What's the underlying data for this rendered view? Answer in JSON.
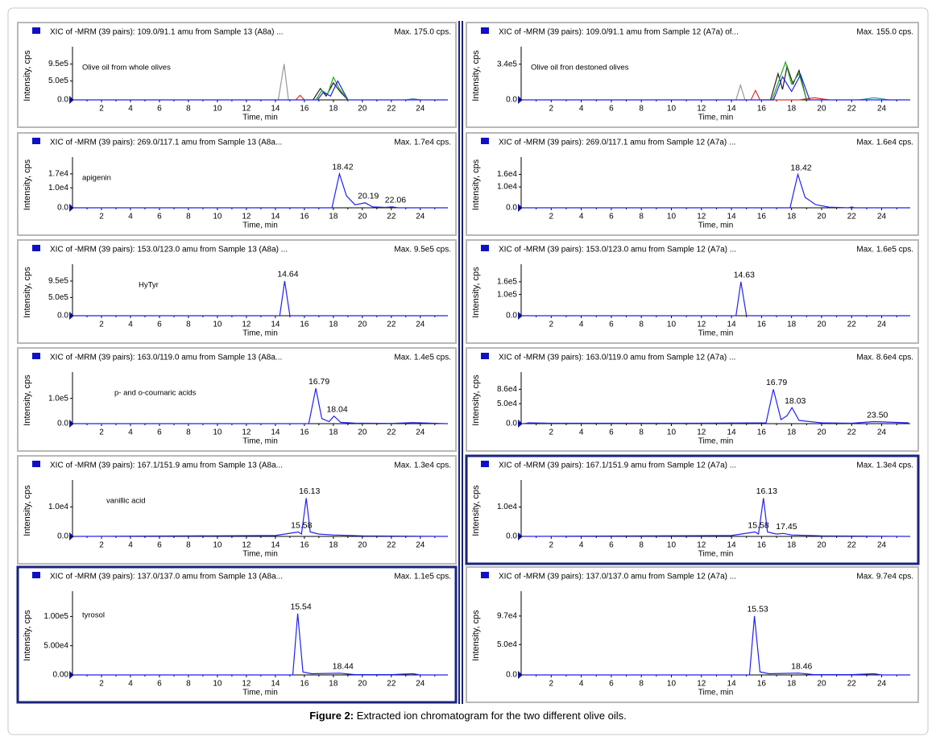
{
  "caption": {
    "label": "Figure 2:",
    "text": "Extracted ion chromatogram for the two different olive oils."
  },
  "chart_data": [
    {
      "type": "line",
      "title": "XIC of -MRM (39 pairs): 109.0/91.1 amu from Sample 13 (A8a) ...",
      "max_label": "Max. 175.0 cps.",
      "annotation": "Olive oil from whole olives",
      "xlabel": "Time, min",
      "ylabel": "Intensity, cps",
      "xlim": [
        0,
        25.9
      ],
      "xticks": [
        2,
        4,
        6,
        8,
        10,
        12,
        14,
        16,
        18,
        20,
        22,
        24
      ],
      "ylim": [
        0,
        1280000
      ],
      "yticks": [
        {
          "value": 0,
          "label": "0.0"
        },
        {
          "value": 500000,
          "label": "5.0e5"
        },
        {
          "value": 950000,
          "label": "9.5e5"
        }
      ],
      "series": [
        {
          "color": "#999999",
          "x": [
            14.2,
            14.6,
            14.9
          ],
          "values": [
            0,
            950000,
            0
          ]
        },
        {
          "color": "#dd3333",
          "x": [
            15.4,
            15.7,
            16.0
          ],
          "values": [
            0,
            120000,
            0
          ]
        },
        {
          "color": "#222222",
          "x": [
            16.6,
            17.1,
            17.5,
            18.0,
            18.5,
            19.0
          ],
          "values": [
            0,
            300000,
            100000,
            450000,
            200000,
            0
          ]
        },
        {
          "color": "#22aa22",
          "x": [
            16.8,
            17.2,
            17.6,
            18.0,
            18.4,
            19.0
          ],
          "values": [
            0,
            250000,
            150000,
            600000,
            300000,
            0
          ]
        },
        {
          "color": "#3399aa",
          "x": [
            23.0,
            23.5,
            24.0
          ],
          "values": [
            0,
            30000,
            0
          ]
        },
        {
          "color": "#2222ee",
          "x": [
            0.2,
            16.9,
            17.3,
            17.8,
            18.3,
            19.0,
            25.8
          ],
          "values": [
            0,
            0,
            200000,
            100000,
            500000,
            0,
            0
          ]
        }
      ]
    },
    {
      "type": "line",
      "title": "XIC of -MRM (39 pairs): 109.0/91.1 amu from Sample 12 (A7a) of...",
      "max_label": "Max. 155.0 cps.",
      "annotation": "Olive oil fron destoned olives",
      "xlabel": "Time, min",
      "ylabel": "Intensity, cps",
      "xlim": [
        0,
        25.9
      ],
      "xticks": [
        2,
        4,
        6,
        8,
        10,
        12,
        14,
        16,
        18,
        20,
        22,
        24
      ],
      "ylim": [
        0,
        460000
      ],
      "yticks": [
        {
          "value": 0,
          "label": "0.0"
        },
        {
          "value": 340000,
          "label": "3.4e5"
        }
      ],
      "series": [
        {
          "color": "#999999",
          "x": [
            14.3,
            14.6,
            14.9
          ],
          "values": [
            0,
            140000,
            0
          ]
        },
        {
          "color": "#dd3333",
          "x": [
            15.3,
            15.6,
            15.9,
            18.5,
            19.5,
            20.5
          ],
          "values": [
            0,
            90000,
            0,
            0,
            20000,
            0
          ]
        },
        {
          "color": "#222222",
          "x": [
            16.6,
            17.1,
            17.4,
            17.7,
            18.1,
            18.5,
            19.0
          ],
          "values": [
            0,
            250000,
            100000,
            320000,
            150000,
            280000,
            0
          ]
        },
        {
          "color": "#22aa22",
          "x": [
            16.7,
            17.2,
            17.6,
            18.0,
            18.5,
            19.0
          ],
          "values": [
            0,
            200000,
            360000,
            150000,
            250000,
            0
          ]
        },
        {
          "color": "#3399aa",
          "x": [
            22.5,
            23.5,
            24.5
          ],
          "values": [
            0,
            20000,
            0
          ]
        },
        {
          "color": "#2222ee",
          "x": [
            0.2,
            16.8,
            17.4,
            18.0,
            18.6,
            19.2,
            25.8
          ],
          "values": [
            0,
            0,
            220000,
            80000,
            240000,
            0,
            0
          ]
        }
      ]
    },
    {
      "type": "line",
      "title": "XIC of -MRM (39 pairs): 269.0/117.1 amu from Sample 13 (A8a...",
      "max_label": "Max. 1.7e4 cps.",
      "annotation": "apigenin",
      "xlabel": "Time, min",
      "ylabel": "Intensity, cps",
      "xlim": [
        0,
        25.9
      ],
      "xticks": [
        2,
        4,
        6,
        8,
        10,
        12,
        14,
        16,
        18,
        20,
        22,
        24
      ],
      "ylim": [
        0,
        23000
      ],
      "yticks": [
        {
          "value": 0,
          "label": "0.0"
        },
        {
          "value": 10000,
          "label": "1.0e4"
        },
        {
          "value": 17000,
          "label": "1.7e4"
        }
      ],
      "series": [
        {
          "color": "#2222ee",
          "x": [
            0.2,
            17.9,
            18.42,
            18.9,
            19.5,
            20.19,
            20.7,
            21.6,
            22.06,
            22.5,
            25.8
          ],
          "values": [
            0,
            0,
            17000,
            6000,
            1500,
            2500,
            500,
            200,
            500,
            0,
            0
          ],
          "x_labels": [
            null,
            null,
            "18.42",
            null,
            null,
            "20.19",
            null,
            null,
            "22.06",
            null,
            null
          ]
        }
      ]
    },
    {
      "type": "line",
      "title": "XIC of -MRM (39 pairs): 269.0/117.1 amu from Sample 12 (A7a) ...",
      "max_label": "Max. 1.6e4 cps.",
      "xlabel": "Time, min",
      "ylabel": "Intensity, cps",
      "xlim": [
        0,
        25.9
      ],
      "xticks": [
        2,
        4,
        6,
        8,
        10,
        12,
        14,
        16,
        18,
        20,
        22,
        24
      ],
      "ylim": [
        0,
        22000
      ],
      "yticks": [
        {
          "value": 0,
          "label": "0.0"
        },
        {
          "value": 10000,
          "label": "1.0e4"
        },
        {
          "value": 16000,
          "label": "1.6e4"
        }
      ],
      "series": [
        {
          "color": "#2222ee",
          "x": [
            0.2,
            17.9,
            18.42,
            18.9,
            19.6,
            20.5,
            21.8,
            22.0,
            22.2,
            25.8
          ],
          "values": [
            0,
            0,
            16000,
            5000,
            1500,
            300,
            0,
            400,
            0,
            0
          ],
          "x_labels": [
            null,
            null,
            "18.42",
            null,
            null,
            null,
            null,
            null,
            null,
            null
          ]
        }
      ]
    },
    {
      "type": "line",
      "title": "XIC of -MRM (39 pairs): 153.0/123.0 amu from Sample 13 (A8a) ...",
      "max_label": "Max. 9.5e5 cps.",
      "annotation": "HyTyr",
      "xlabel": "Time, min",
      "ylabel": "Intensity, cps",
      "xlim": [
        0,
        25.9
      ],
      "xticks": [
        2,
        4,
        6,
        8,
        10,
        12,
        14,
        16,
        18,
        20,
        22,
        24
      ],
      "ylim": [
        0,
        1280000
      ],
      "yticks": [
        {
          "value": 0,
          "label": "0.0"
        },
        {
          "value": 500000,
          "label": "5.0e5"
        },
        {
          "value": 950000,
          "label": "9.5e5"
        }
      ],
      "series": [
        {
          "color": "#2222ee",
          "x": [
            0.2,
            14.3,
            14.64,
            15.0,
            25.8
          ],
          "values": [
            0,
            0,
            950000,
            0,
            0
          ],
          "x_labels": [
            null,
            null,
            "14.64",
            null,
            null
          ]
        }
      ]
    },
    {
      "type": "line",
      "title": "XIC of -MRM (39 pairs): 153.0/123.0 amu from Sample 12 (A7a) ...",
      "max_label": "Max. 1.6e5 cps.",
      "xlabel": "Time, min",
      "ylabel": "Intensity, cps",
      "xlim": [
        0,
        25.9
      ],
      "xticks": [
        2,
        4,
        6,
        8,
        10,
        12,
        14,
        16,
        18,
        20,
        22,
        24
      ],
      "ylim": [
        0,
        220000
      ],
      "yticks": [
        {
          "value": 0,
          "label": "0.0"
        },
        {
          "value": 100000,
          "label": "1.0e5"
        },
        {
          "value": 160000,
          "label": "1.6e5"
        }
      ],
      "series": [
        {
          "color": "#2222ee",
          "x": [
            0.2,
            14.3,
            14.63,
            15.0,
            25.8
          ],
          "values": [
            0,
            0,
            160000,
            0,
            0
          ],
          "x_labels": [
            null,
            null,
            "14.63",
            null,
            null
          ]
        }
      ]
    },
    {
      "type": "line",
      "title": "XIC of -MRM (39 pairs): 163.0/119.0 amu from Sample 13 (A8a...",
      "max_label": "Max. 1.4e5 cps.",
      "annotation": "p- and o-coumaric acids",
      "xlabel": "Time, min",
      "ylabel": "Intensity, cps",
      "xlim": [
        0,
        25.9
      ],
      "xticks": [
        2,
        4,
        6,
        8,
        10,
        12,
        14,
        16,
        18,
        20,
        22,
        24
      ],
      "ylim": [
        0,
        185000
      ],
      "yticks": [
        {
          "value": 0,
          "label": "0.0"
        },
        {
          "value": 100000,
          "label": "1.0e5"
        }
      ],
      "series": [
        {
          "color": "#2222ee",
          "x": [
            0.2,
            16.3,
            16.79,
            17.2,
            17.7,
            18.04,
            18.5,
            19.5,
            22.0,
            23.5,
            25.8
          ],
          "values": [
            0,
            0,
            140000,
            20000,
            8000,
            30000,
            5000,
            2000,
            1000,
            4000,
            0
          ],
          "x_labels": [
            null,
            null,
            "16.79",
            null,
            null,
            "18.04",
            null,
            null,
            null,
            null,
            null
          ]
        }
      ]
    },
    {
      "type": "line",
      "title": "XIC of -MRM (39 pairs): 163.0/119.0 amu from Sample 12 (A7a) ...",
      "max_label": "Max. 8.6e4 cps.",
      "xlabel": "Time, min",
      "ylabel": "Intensity, cps",
      "xlim": [
        0,
        25.9
      ],
      "xticks": [
        2,
        4,
        6,
        8,
        10,
        12,
        14,
        16,
        18,
        20,
        22,
        24
      ],
      "ylim": [
        0,
        117000
      ],
      "yticks": [
        {
          "value": 0,
          "label": "0.0"
        },
        {
          "value": 50000,
          "label": "5.0e4"
        },
        {
          "value": 86000,
          "label": "8.6e4"
        }
      ],
      "series": [
        {
          "color": "#2222ee",
          "x": [
            0.2,
            0.5,
            2.0,
            11.0,
            16.3,
            16.79,
            17.3,
            17.7,
            18.03,
            18.5,
            20.0,
            22.0,
            23.5,
            25.8
          ],
          "values": [
            0,
            2000,
            1000,
            1000,
            2000,
            86000,
            10000,
            20000,
            40000,
            8000,
            2000,
            1000,
            5000,
            2000
          ],
          "x_labels": [
            null,
            null,
            null,
            null,
            null,
            "16.79",
            null,
            null,
            "18.03",
            null,
            null,
            null,
            "23.50",
            null
          ]
        }
      ]
    },
    {
      "type": "line",
      "title": "XIC of -MRM (39 pairs): 167.1/151.9 amu from Sample 13 (A8a...",
      "max_label": "Max. 1.3e4 cps.",
      "annotation": "vanillic acid",
      "xlabel": "Time, min",
      "ylabel": "Intensity, cps",
      "xlim": [
        0,
        25.9
      ],
      "xticks": [
        2,
        4,
        6,
        8,
        10,
        12,
        14,
        16,
        18,
        20,
        22,
        24
      ],
      "ylim": [
        0,
        17500
      ],
      "yticks": [
        {
          "value": 0,
          "label": "0.0"
        },
        {
          "value": 10000,
          "label": "1.0e4"
        }
      ],
      "series": [
        {
          "color": "#2222ee",
          "x": [
            0.2,
            14.0,
            15.58,
            15.8,
            16.13,
            16.4,
            17.0,
            18.0,
            20.0,
            25.8
          ],
          "values": [
            0,
            300,
            1500,
            800,
            13000,
            1500,
            800,
            500,
            200,
            0
          ],
          "x_labels": [
            null,
            null,
            "15.58",
            null,
            "16.13",
            null,
            null,
            null,
            null,
            null
          ]
        }
      ]
    },
    {
      "type": "line",
      "title": "XIC of -MRM (39 pairs): 167.1/151.9 amu from Sample 12 (A7a) ...",
      "max_label": "Max. 1.3e4 cps.",
      "highlight": true,
      "xlabel": "Time, min",
      "ylabel": "Intensity, cps",
      "xlim": [
        0,
        25.9
      ],
      "xticks": [
        2,
        4,
        6,
        8,
        10,
        12,
        14,
        16,
        18,
        20,
        22,
        24
      ],
      "ylim": [
        0,
        17500
      ],
      "yticks": [
        {
          "value": 0,
          "label": "0.0"
        },
        {
          "value": 10000,
          "label": "1.0e4"
        }
      ],
      "series": [
        {
          "color": "#2222ee",
          "x": [
            0.2,
            14.0,
            15.58,
            15.8,
            16.13,
            16.4,
            17.0,
            17.45,
            18.0,
            20.0,
            25.8
          ],
          "values": [
            0,
            300,
            1500,
            800,
            13000,
            1500,
            800,
            1000,
            500,
            200,
            0
          ],
          "x_labels": [
            null,
            null,
            "15.58",
            null,
            "16.13",
            null,
            null,
            "17.45",
            null,
            null,
            null
          ]
        }
      ]
    },
    {
      "type": "line",
      "title": "XIC of -MRM (39 pairs): 137.0/137.0 amu from Sample 13 (A8a...",
      "max_label": "Max. 1.1e5 cps.",
      "annotation": "tyrosol",
      "highlight": true,
      "xlabel": "Time, min",
      "ylabel": "Intensity, cps",
      "xlim": [
        0,
        25.9
      ],
      "xticks": [
        2,
        4,
        6,
        8,
        10,
        12,
        14,
        16,
        18,
        20,
        22,
        24
      ],
      "ylim": [
        0,
        135000
      ],
      "yticks": [
        {
          "value": 0,
          "label": "0.00"
        },
        {
          "value": 50000,
          "label": "5.00e4"
        },
        {
          "value": 100000,
          "label": "1.00e5"
        }
      ],
      "series": [
        {
          "color": "#2222ee",
          "x": [
            0.2,
            15.2,
            15.54,
            15.9,
            16.5,
            18.44,
            19.5,
            22.0,
            23.5,
            24.0,
            25.8
          ],
          "values": [
            0,
            0,
            105000,
            5000,
            2000,
            3000,
            500,
            500,
            2000,
            0,
            0
          ],
          "x_labels": [
            null,
            null,
            "15.54",
            null,
            null,
            "18.44",
            null,
            null,
            null,
            null,
            null
          ]
        }
      ]
    },
    {
      "type": "line",
      "title": "XIC of -MRM (39 pairs): 137.0/137.0 amu from Sample 12 (A7a) ...",
      "max_label": "Max. 9.7e4 cps.",
      "xlabel": "Time, min",
      "ylabel": "Intensity, cps",
      "xlim": [
        0,
        25.9
      ],
      "xticks": [
        2,
        4,
        6,
        8,
        10,
        12,
        14,
        16,
        18,
        20,
        22,
        24
      ],
      "ylim": [
        0,
        130000
      ],
      "yticks": [
        {
          "value": 0,
          "label": "0.0"
        },
        {
          "value": 50000,
          "label": "5.0e4"
        },
        {
          "value": 97000,
          "label": "9.7e4"
        }
      ],
      "series": [
        {
          "color": "#2222ee",
          "x": [
            0.2,
            15.2,
            15.53,
            15.9,
            16.5,
            18.46,
            19.5,
            22.0,
            23.5,
            24.0,
            25.8
          ],
          "values": [
            0,
            0,
            97000,
            5000,
            2000,
            3000,
            500,
            500,
            2000,
            0,
            0
          ],
          "x_labels": [
            null,
            null,
            "15.53",
            null,
            null,
            "18.46",
            null,
            null,
            null,
            null,
            null
          ]
        }
      ]
    }
  ]
}
